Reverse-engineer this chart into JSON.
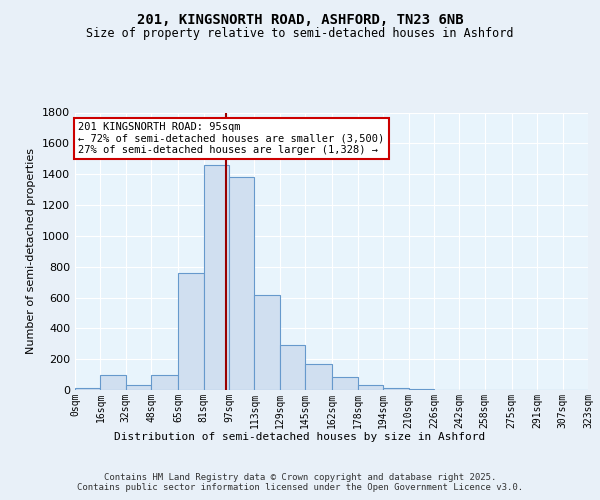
{
  "title_line1": "201, KINGSNORTH ROAD, ASHFORD, TN23 6NB",
  "title_line2": "Size of property relative to semi-detached houses in Ashford",
  "xlabel": "Distribution of semi-detached houses by size in Ashford",
  "ylabel": "Number of semi-detached properties",
  "bin_edges": [
    0,
    16,
    32,
    48,
    65,
    81,
    97,
    113,
    129,
    145,
    162,
    178,
    194,
    210,
    226,
    242,
    258,
    275,
    291,
    307,
    323
  ],
  "bar_heights": [
    10,
    95,
    30,
    100,
    760,
    1460,
    1380,
    615,
    295,
    170,
    85,
    30,
    15,
    5,
    2,
    1,
    1,
    0,
    0,
    0
  ],
  "bar_color": "#d0dff0",
  "bar_edge_color": "#6699cc",
  "property_size": 95,
  "property_line_color": "#990000",
  "annotation_text": "201 KINGSNORTH ROAD: 95sqm\n← 72% of semi-detached houses are smaller (3,500)\n27% of semi-detached houses are larger (1,328) →",
  "annotation_box_color": "#ffffff",
  "annotation_box_edge_color": "#cc0000",
  "ylim": [
    0,
    1800
  ],
  "background_color": "#e8f0f8",
  "plot_bg_color": "#e8f4fc",
  "footer_text": "Contains HM Land Registry data © Crown copyright and database right 2025.\nContains public sector information licensed under the Open Government Licence v3.0.",
  "tick_labels": [
    "0sqm",
    "16sqm",
    "32sqm",
    "48sqm",
    "65sqm",
    "81sqm",
    "97sqm",
    "113sqm",
    "129sqm",
    "145sqm",
    "162sqm",
    "178sqm",
    "194sqm",
    "210sqm",
    "226sqm",
    "242sqm",
    "258sqm",
    "275sqm",
    "291sqm",
    "307sqm",
    "323sqm"
  ]
}
